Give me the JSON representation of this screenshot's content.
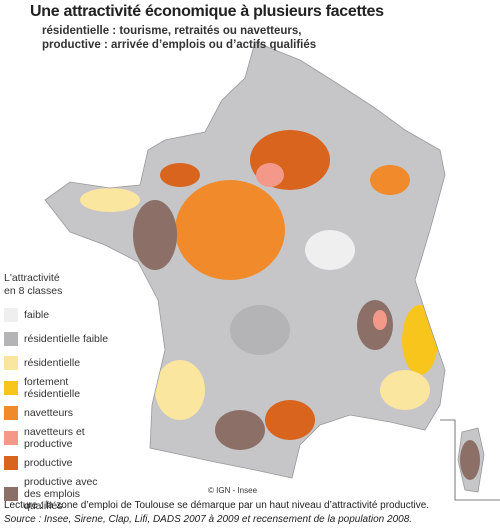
{
  "header": {
    "title": "Une attractivité économique à plusieurs facettes",
    "subtitle_lines": [
      "résidentielle : tourisme, retraités ou navetteurs,",
      "productive : arrivée d’emplois ou d’actifs qualifiés"
    ]
  },
  "legend": {
    "title_lines": [
      "L'attractivité",
      "en 8 classes"
    ],
    "items": [
      {
        "label": "faible",
        "color": "#efefef"
      },
      {
        "label": "résidentielle faible",
        "color": "#b4b4b6"
      },
      {
        "label": "résidentielle",
        "color": "#fbe6a0"
      },
      {
        "label": "fortement résidentielle",
        "color": "#f8c51c"
      },
      {
        "label": "navetteurs",
        "color": "#f08a2a"
      },
      {
        "label": "navetteurs et productive",
        "color": "#f4988a"
      },
      {
        "label": "productive",
        "color": "#d8641e"
      },
      {
        "label": "productive avec des emplois qualifiés",
        "color": "#8c7068"
      }
    ]
  },
  "credit": "© IGN - Insee",
  "footer": {
    "lecture": "Lecture : la zone d’emploi de Toulouse se démarque par un haut niveau d’attractivité productive.",
    "source": "Source : Insee, Sirene, Clap, Lifi, DADS 2007 à 2009 et recensement de la population 2008."
  }
}
